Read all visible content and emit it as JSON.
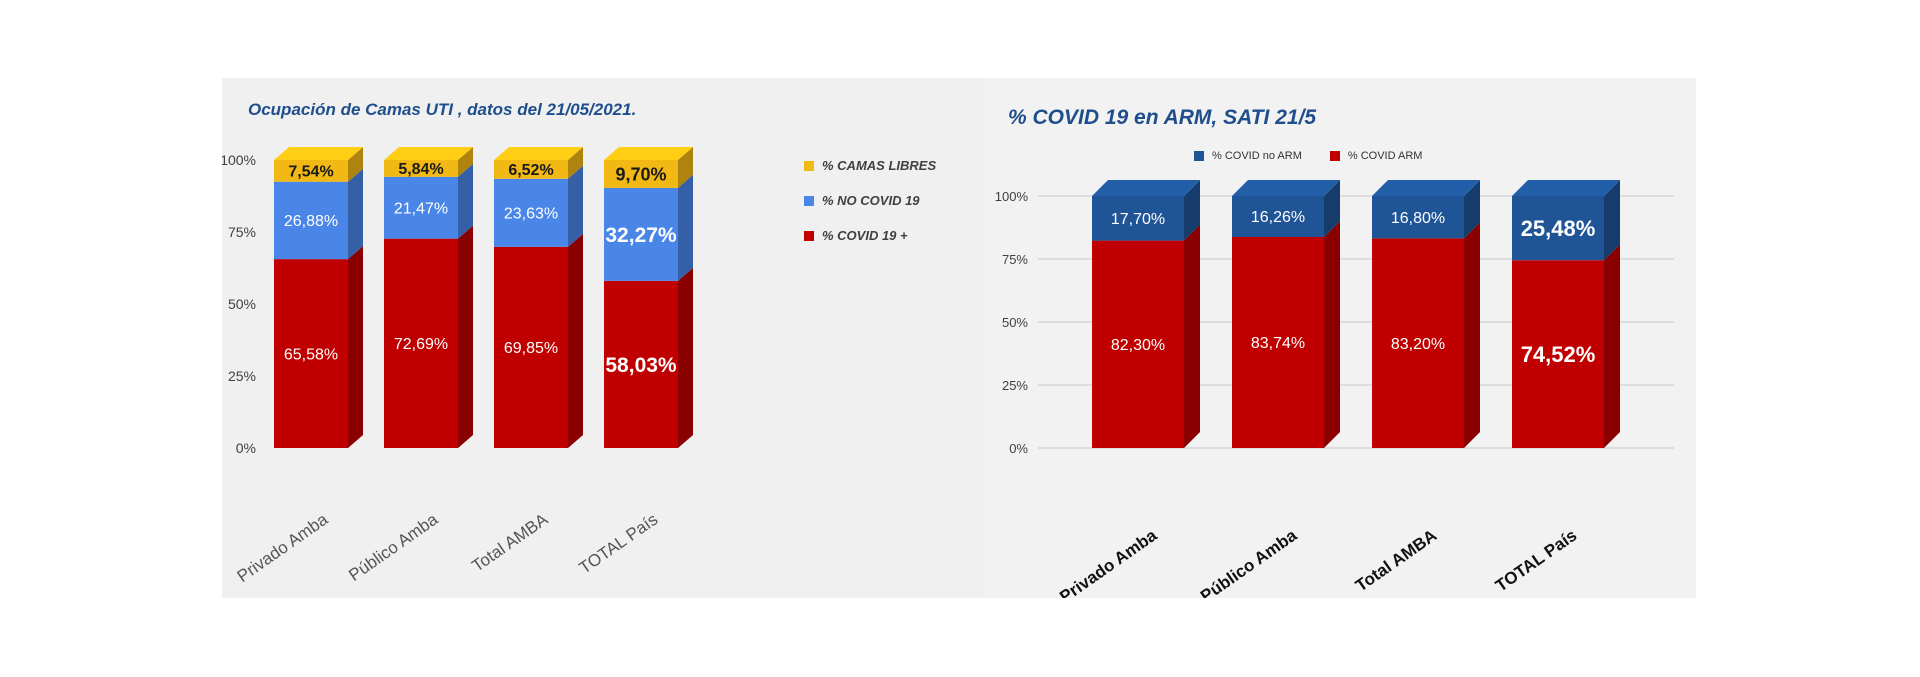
{
  "colors": {
    "covid_pos": "#c00000",
    "no_covid": "#4a86e8",
    "camas_libres": "#f2b813",
    "covid_no_arm": "#1f5496",
    "covid_arm": "#c00000"
  },
  "chart_data": [
    {
      "type": "bar",
      "stacked": true,
      "title": "Ocupación de Camas UTI , datos del 21/05/2021.",
      "categories": [
        "Privado Amba",
        "Público Amba",
        "Total AMBA",
        "TOTAL País"
      ],
      "ylim": [
        0,
        100
      ],
      "yticks": [
        "0%",
        "25%",
        "50%",
        "75%",
        "100%"
      ],
      "legend_position": "right",
      "grid": false,
      "series": [
        {
          "name": "% COVID 19 +",
          "values": [
            65.58,
            72.69,
            69.85,
            58.03
          ],
          "labels": [
            "65,58%",
            "72,69%",
            "69,85%",
            "58,03%"
          ]
        },
        {
          "name": "% NO COVID 19",
          "values": [
            26.88,
            21.47,
            23.63,
            32.27
          ],
          "labels": [
            "26,88%",
            "21,47%",
            "23,63%",
            "32,27%"
          ]
        },
        {
          "name": "% CAMAS LIBRES",
          "values": [
            7.54,
            5.84,
            6.52,
            9.7
          ],
          "labels": [
            "7,54%",
            "5,84%",
            "6,52%",
            "9,70%"
          ]
        }
      ]
    },
    {
      "type": "bar",
      "stacked": true,
      "title": "% COVID 19 en ARM, SATI 21/5",
      "categories": [
        "Privado Amba",
        "Público Amba",
        "Total AMBA",
        "TOTAL País"
      ],
      "ylim": [
        0,
        100
      ],
      "yticks": [
        "0%",
        "25%",
        "50%",
        "75%",
        "100%"
      ],
      "legend_position": "top",
      "grid": true,
      "series": [
        {
          "name": "% COVID ARM",
          "values": [
            82.3,
            83.74,
            83.2,
            74.52
          ],
          "labels": [
            "82,30%",
            "83,74%",
            "83,20%",
            "74,52%"
          ]
        },
        {
          "name": "% COVID no ARM",
          "values": [
            17.7,
            16.26,
            16.8,
            25.48
          ],
          "labels": [
            "17,70%",
            "16,26%",
            "16,80%",
            "25,48%"
          ]
        }
      ]
    }
  ]
}
